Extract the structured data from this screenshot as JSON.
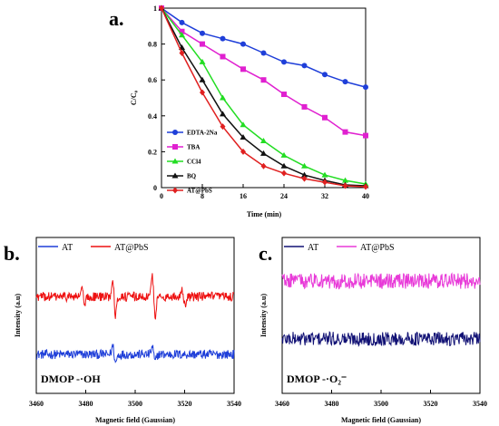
{
  "chart_data": [
    {
      "panel": "a.",
      "type": "line",
      "xlabel": "Time (min)",
      "ylabel": "C/C₀",
      "xlim": [
        0,
        40
      ],
      "ylim": [
        0,
        1
      ],
      "xticks": [
        "0",
        "8",
        "16",
        "24",
        "32",
        "40"
      ],
      "yticks": [
        "0",
        "0.2",
        "0.4",
        "0.6",
        "0.8",
        "1"
      ],
      "legend": "lower-left",
      "x": [
        0,
        4,
        8,
        12,
        16,
        20,
        24,
        28,
        32,
        36,
        40
      ],
      "series": [
        {
          "name": "EDTA-2Na",
          "color": "#1f3fd9",
          "marker": "circle",
          "values": [
            1.0,
            0.92,
            0.86,
            0.83,
            0.8,
            0.75,
            0.7,
            0.68,
            0.63,
            0.59,
            0.56
          ]
        },
        {
          "name": "TBA",
          "color": "#e020d0",
          "marker": "square",
          "values": [
            1.0,
            0.87,
            0.8,
            0.73,
            0.66,
            0.6,
            0.52,
            0.45,
            0.39,
            0.31,
            0.29
          ]
        },
        {
          "name": "CCl4",
          "color": "#22dd22",
          "marker": "triangle",
          "values": [
            1.0,
            0.85,
            0.7,
            0.5,
            0.35,
            0.26,
            0.18,
            0.12,
            0.07,
            0.04,
            0.02
          ]
        },
        {
          "name": "BQ",
          "color": "#111111",
          "marker": "triangle",
          "values": [
            1.0,
            0.78,
            0.6,
            0.41,
            0.28,
            0.19,
            0.12,
            0.07,
            0.04,
            0.015,
            0.01
          ]
        },
        {
          "name": "AT@PbS",
          "color": "#e02020",
          "marker": "diamond",
          "values": [
            1.0,
            0.75,
            0.53,
            0.34,
            0.2,
            0.12,
            0.08,
            0.05,
            0.03,
            0.01,
            0.005
          ]
        }
      ]
    },
    {
      "panel": "b.",
      "type": "line",
      "xlabel": "Magnetic field (Gaussian)",
      "ylabel": "Intensity (a.u)",
      "xlim": [
        3460,
        3540
      ],
      "xticks": [
        "3460",
        "3480",
        "3500",
        "3520",
        "3540"
      ],
      "legend": "top",
      "annotation": "DMOP -·OH",
      "series": [
        {
          "name": "AT",
          "color": "#1f3fd9",
          "baseline": 0.25,
          "noise": 0.03,
          "peaks": [
            {
              "x": 3491.5,
              "amp": 0.08
            },
            {
              "x": 3507.5,
              "amp": 0.07
            }
          ]
        },
        {
          "name": "AT@PbS",
          "color": "#ee1111",
          "baseline": 0.62,
          "noise": 0.03,
          "peaks": [
            {
              "x": 3479,
              "amp": 0.09
            },
            {
              "x": 3491.5,
              "amp": 0.17
            },
            {
              "x": 3507.5,
              "amp": 0.18
            },
            {
              "x": 3519.5,
              "amp": 0.08
            }
          ]
        }
      ]
    },
    {
      "panel": "c.",
      "type": "line",
      "xlabel": "Magnetic field (Gaussian)",
      "ylabel": "Intensity (a.u)",
      "xlim": [
        3460,
        3540
      ],
      "xticks": [
        "3460",
        "3480",
        "3500",
        "3520",
        "3540"
      ],
      "legend": "top",
      "annotation": "DMOP -·O₂⁻",
      "series": [
        {
          "name": "AT",
          "color": "#121275",
          "baseline": 0.35,
          "noise": 0.045,
          "peaks": []
        },
        {
          "name": "AT@PbS",
          "color": "#e83ad8",
          "baseline": 0.72,
          "noise": 0.05,
          "peaks": []
        }
      ]
    }
  ]
}
